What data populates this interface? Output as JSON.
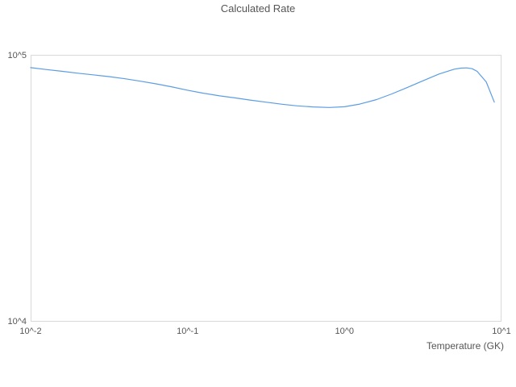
{
  "chart_data": {
    "type": "line",
    "title": "Calculated Rate",
    "xlabel": "Temperature (GK)",
    "ylabel": "",
    "x_scale": "log",
    "y_scale": "log",
    "xlim": [
      0.01,
      10
    ],
    "ylim": [
      10000,
      100000
    ],
    "grid": false,
    "legend": "none",
    "x_ticks": {
      "values": [
        0.01,
        0.1,
        1,
        10
      ],
      "labels": [
        "10^-2",
        "10^-1",
        "10^0",
        "10^1"
      ]
    },
    "y_ticks": {
      "values": [
        10000,
        100000
      ],
      "labels": [
        "10^4",
        "10^5"
      ]
    },
    "series": [
      {
        "name": "Calculated Rate",
        "color": "#5b9de4",
        "x": [
          0.01,
          0.0125,
          0.016,
          0.02,
          0.025,
          0.0315,
          0.04,
          0.05,
          0.063,
          0.08,
          0.1,
          0.125,
          0.16,
          0.2,
          0.25,
          0.315,
          0.4,
          0.5,
          0.63,
          0.8,
          1.0,
          1.25,
          1.6,
          2.0,
          2.5,
          3.15,
          4.0,
          5.0,
          5.5,
          6.0,
          6.5,
          7.0,
          8.0,
          9.0
        ],
        "y": [
          89500,
          88100,
          86700,
          85300,
          84100,
          82800,
          81300,
          79600,
          77800,
          75700,
          73600,
          71800,
          70100,
          68900,
          67600,
          66400,
          65200,
          64300,
          63700,
          63400,
          63800,
          65300,
          67900,
          71300,
          75300,
          79800,
          84700,
          88300,
          89100,
          89300,
          88700,
          86700,
          79100,
          66400
        ]
      }
    ]
  },
  "colors": {
    "line": "#5b9de4",
    "text": "#555555",
    "plot_border": "#d9d9d9",
    "background": "#ffffff"
  }
}
